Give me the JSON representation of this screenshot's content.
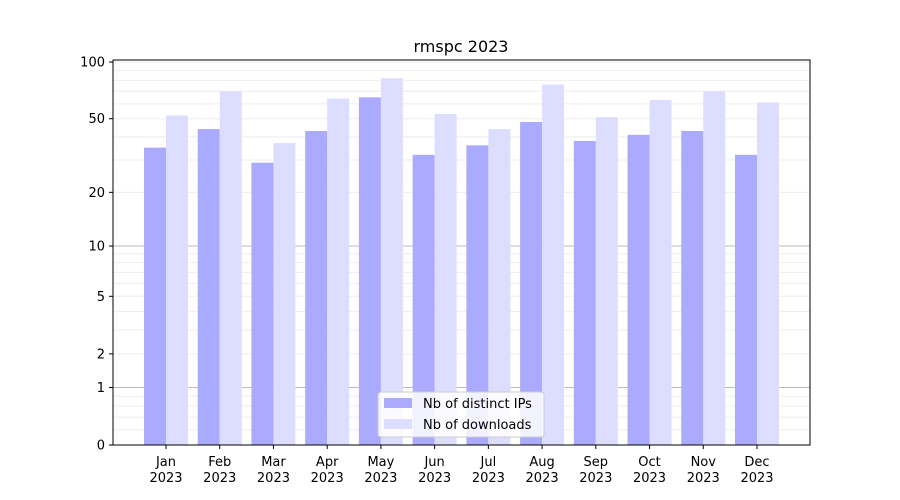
{
  "chart_data": {
    "type": "bar",
    "title": "rmspc 2023",
    "xlabel": "",
    "ylabel": "",
    "yscale": "log(1+y)",
    "ylim": [
      0,
      100
    ],
    "yticks": [
      0,
      1,
      2,
      5,
      10,
      20,
      50,
      100
    ],
    "grid": true,
    "legend_position": "bottom-center",
    "categories": [
      "Jan\n2023",
      "Feb\n2023",
      "Mar\n2023",
      "Apr\n2023",
      "May\n2023",
      "Jun\n2023",
      "Jul\n2023",
      "Aug\n2023",
      "Sep\n2023",
      "Oct\n2023",
      "Nov\n2023",
      "Dec\n2023"
    ],
    "series": [
      {
        "name": "Nb of distinct IPs",
        "color": "#aaaaff",
        "values": [
          35,
          44,
          29,
          43,
          65,
          32,
          36,
          48,
          38,
          41,
          43,
          32
        ]
      },
      {
        "name": "Nb of downloads",
        "color": "#ddddff",
        "values": [
          52,
          70,
          37,
          64,
          82,
          53,
          44,
          76,
          51,
          63,
          70,
          61
        ]
      }
    ]
  }
}
